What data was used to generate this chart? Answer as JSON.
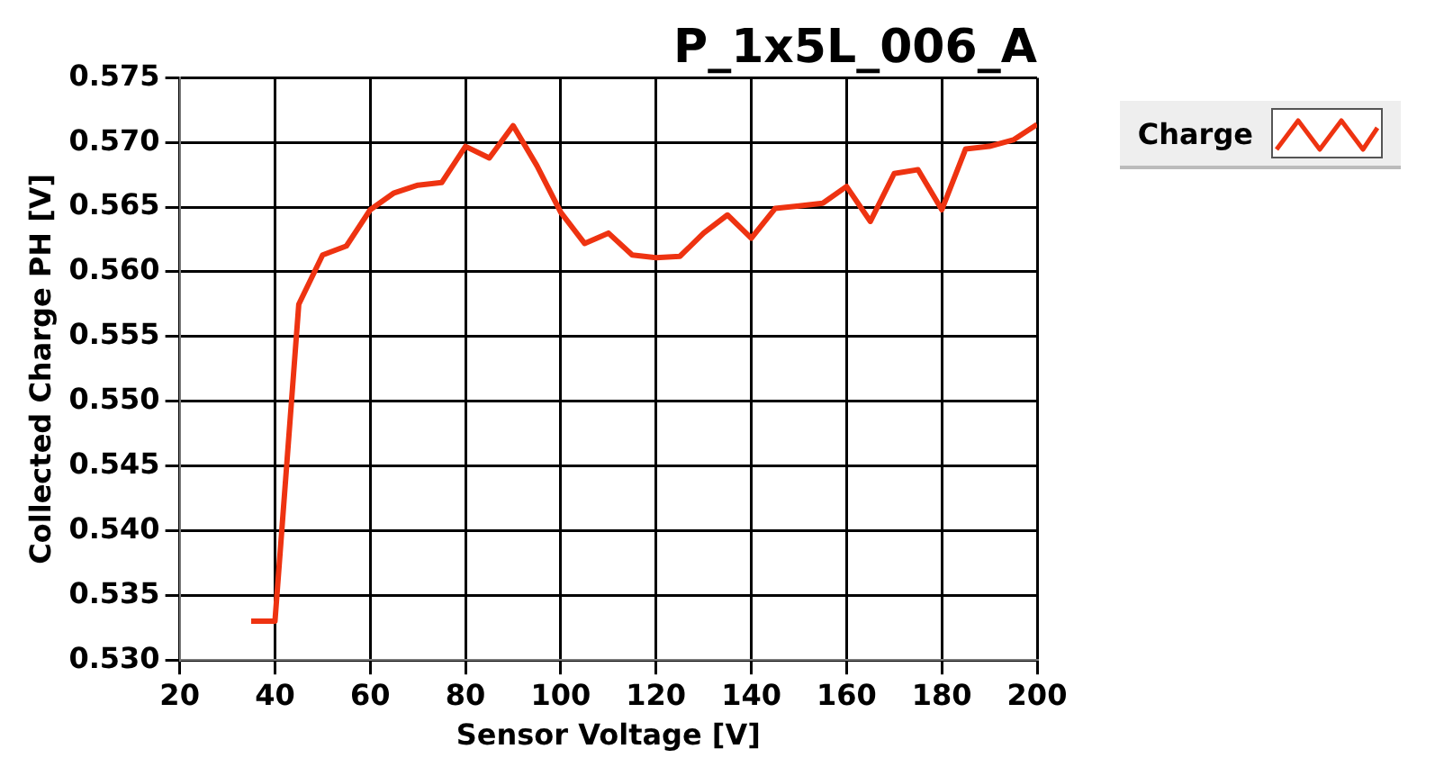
{
  "chart_data": {
    "type": "line",
    "title": "P_1x5L_006_A",
    "xlabel": "Sensor Voltage [V]",
    "ylabel": "Collected Charge PH [V]",
    "xlim": [
      20,
      200
    ],
    "xticks": [
      20,
      40,
      60,
      80,
      100,
      120,
      140,
      160,
      180,
      200
    ],
    "ylim": [
      0.53,
      0.575
    ],
    "yticks": [
      {
        "value": 0.53,
        "label": "0.530"
      },
      0.535,
      {
        "value": 0.54,
        "label": "0.540"
      },
      0.545,
      {
        "value": 0.55,
        "label": "0.550"
      },
      0.555,
      {
        "value": 0.56,
        "label": "0.560"
      },
      0.565,
      {
        "value": 0.57,
        "label": "0.570"
      },
      0.575
    ],
    "grid": true,
    "legend": "top right",
    "marker": "none",
    "line_style": "solid",
    "x": [
      35,
      40,
      45,
      50,
      55,
      60,
      65,
      70,
      75,
      80,
      85,
      90,
      95,
      100,
      105,
      110,
      115,
      120,
      125,
      130,
      135,
      140,
      145,
      150,
      155,
      160,
      165,
      170,
      175,
      180,
      185,
      190,
      195,
      200
    ],
    "series": [
      {
        "name": "Charge",
        "color": "#ee3311",
        "values": [
          0.533,
          0.533,
          0.5575,
          0.5613,
          0.562,
          0.5648,
          0.5661,
          0.5667,
          0.5669,
          0.5697,
          0.5688,
          0.5713,
          0.5682,
          0.5646,
          0.5622,
          0.563,
          0.5613,
          0.5611,
          0.5612,
          0.563,
          0.5644,
          0.5626,
          0.5649,
          0.5651,
          0.5653,
          0.5666,
          0.5639,
          0.5676,
          0.5679,
          0.5648,
          0.5695,
          0.5697,
          0.5702,
          0.5714
        ]
      }
    ]
  }
}
